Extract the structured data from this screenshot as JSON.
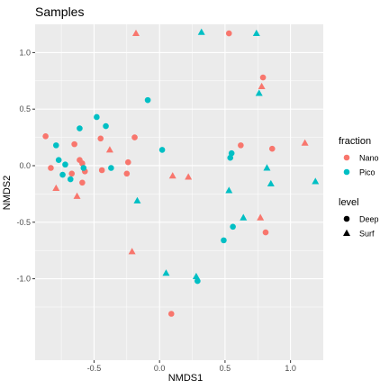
{
  "chart_data": {
    "type": "scatter",
    "title": "Samples",
    "xlabel": "NMDS1",
    "ylabel": "NMDS2",
    "xlim": [
      -0.95,
      1.25
    ],
    "ylim": [
      -1.72,
      1.25
    ],
    "x_ticks": [
      -0.5,
      0.0,
      0.5,
      1.0
    ],
    "x_tick_labels": [
      "-0.5",
      "0.0",
      "0.5",
      "1.0"
    ],
    "y_ticks": [
      -1.0,
      -0.5,
      0.0,
      0.5,
      1.0
    ],
    "y_tick_labels": [
      "-1.0",
      "-0.5",
      "0.0",
      "0.5",
      "1.0"
    ],
    "grid": true,
    "background": "#ebebeb",
    "legend_position": "right",
    "legends": [
      {
        "title": "fraction",
        "items": [
          {
            "label": "Nano",
            "color": "#f8766d",
            "shape": "circle"
          },
          {
            "label": "Pico",
            "color": "#00bfc4",
            "shape": "circle"
          }
        ]
      },
      {
        "title": "level",
        "items": [
          {
            "label": "Deep",
            "color": "#000000",
            "shape": "circle"
          },
          {
            "label": "Surf",
            "color": "#000000",
            "shape": "triangle"
          }
        ]
      }
    ],
    "series": [
      {
        "fraction": "Nano",
        "level": "Deep",
        "color": "#f8766d",
        "shape": "circle",
        "points": [
          [
            -0.87,
            0.26
          ],
          [
            -0.83,
            -0.02
          ],
          [
            -0.65,
            0.19
          ],
          [
            -0.61,
            0.05
          ],
          [
            -0.59,
            0.02
          ],
          [
            -0.67,
            -0.07
          ],
          [
            -0.57,
            -0.05
          ],
          [
            -0.59,
            -0.15
          ],
          [
            -0.45,
            0.24
          ],
          [
            -0.44,
            -0.04
          ],
          [
            -0.24,
            0.03
          ],
          [
            -0.25,
            -0.07
          ],
          [
            -0.19,
            0.25
          ],
          [
            0.09,
            -1.31
          ],
          [
            0.53,
            1.17
          ],
          [
            0.62,
            0.18
          ],
          [
            0.79,
            0.78
          ],
          [
            0.86,
            0.15
          ],
          [
            0.81,
            -0.59
          ]
        ]
      },
      {
        "fraction": "Nano",
        "level": "Surf",
        "color": "#f8766d",
        "shape": "triangle",
        "points": [
          [
            -0.18,
            1.17
          ],
          [
            -0.79,
            -0.2
          ],
          [
            -0.63,
            -0.27
          ],
          [
            -0.38,
            0.14
          ],
          [
            -0.21,
            -0.76
          ],
          [
            0.1,
            -0.09
          ],
          [
            0.22,
            -0.1
          ],
          [
            0.77,
            -0.46
          ],
          [
            0.78,
            0.7
          ],
          [
            1.11,
            0.2
          ]
        ]
      },
      {
        "fraction": "Pico",
        "level": "Deep",
        "color": "#00bfc4",
        "shape": "circle",
        "points": [
          [
            -0.79,
            0.18
          ],
          [
            -0.77,
            0.05
          ],
          [
            -0.74,
            -0.08
          ],
          [
            -0.72,
            0.01
          ],
          [
            -0.68,
            -0.12
          ],
          [
            -0.61,
            0.33
          ],
          [
            -0.58,
            -0.02
          ],
          [
            -0.48,
            0.43
          ],
          [
            -0.41,
            0.35
          ],
          [
            -0.37,
            -0.02
          ],
          [
            -0.09,
            0.58
          ],
          [
            0.02,
            0.14
          ],
          [
            0.29,
            -1.02
          ],
          [
            0.49,
            -0.66
          ],
          [
            0.54,
            0.07
          ],
          [
            0.55,
            0.11
          ],
          [
            0.56,
            -0.54
          ]
        ]
      },
      {
        "fraction": "Pico",
        "level": "Surf",
        "color": "#00bfc4",
        "shape": "triangle",
        "points": [
          [
            -0.17,
            -0.31
          ],
          [
            0.05,
            -0.95
          ],
          [
            0.28,
            -0.98
          ],
          [
            0.32,
            1.18
          ],
          [
            0.53,
            -0.22
          ],
          [
            0.64,
            -0.46
          ],
          [
            0.74,
            1.17
          ],
          [
            0.76,
            0.64
          ],
          [
            0.82,
            -0.02
          ],
          [
            0.85,
            -0.16
          ],
          [
            1.19,
            -0.14
          ]
        ]
      }
    ]
  }
}
